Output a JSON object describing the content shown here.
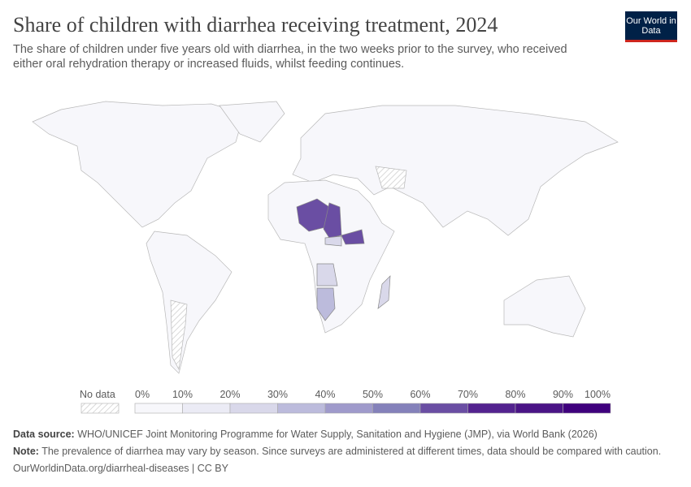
{
  "header": {
    "title": "Share of children with diarrhea receiving treatment, 2024",
    "subtitle": "The share of children under five years old with diarrhea, in the two weeks prior to the survey, who received either oral rehydration therapy or increased fluids, whilst feeding continues.",
    "logo": "Our World in Data"
  },
  "legend": {
    "no_data_label": "No data",
    "ticks": [
      "0%",
      "10%",
      "20%",
      "30%",
      "40%",
      "50%",
      "60%",
      "70%",
      "80%",
      "90%",
      "100%"
    ],
    "colors": [
      "#f7f7fb",
      "#ebebf5",
      "#d9d8ea",
      "#bcbbdc",
      "#9f9acb",
      "#8481ba",
      "#6a4ea3",
      "#53238f",
      "#4a1486",
      "#3f007d"
    ]
  },
  "map": {
    "highlighted_regions": [
      {
        "name": "Niger",
        "approx_value_pct": 65
      },
      {
        "name": "Chad",
        "approx_value_pct": 65
      },
      {
        "name": "South Sudan",
        "approx_value_pct": 65
      },
      {
        "name": "Central African Republic",
        "approx_value_pct": 25
      },
      {
        "name": "Angola",
        "approx_value_pct": 25
      },
      {
        "name": "Namibia",
        "approx_value_pct": 35
      },
      {
        "name": "Madagascar",
        "approx_value_pct": 25
      }
    ]
  },
  "footer": {
    "source_label": "Data source:",
    "source": "WHO/UNICEF Joint Monitoring Programme for Water Supply, Sanitation and Hygiene (JMP), via World Bank (2026)",
    "note_label": "Note:",
    "note": "The prevalence of diarrhea may vary by season. Since surveys are administered at different times, data should be compared with caution.",
    "url": "OurWorldinData.org/diarrheal-diseases | CC BY"
  }
}
